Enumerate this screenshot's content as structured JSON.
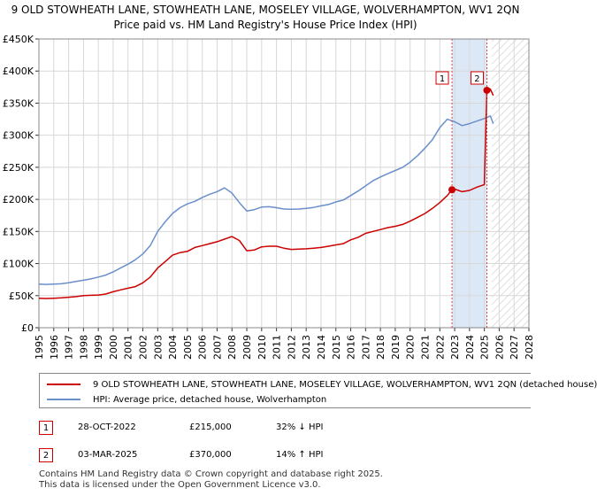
{
  "title": {
    "line1": "9 OLD STOWHEATH LANE, STOWHEATH LANE, MOSELEY VILLAGE, WOLVERHAMPTON, WV1 2QN",
    "line2": "Price paid vs. HM Land Registry's House Price Index (HPI)"
  },
  "colors": {
    "price_line": "#cc0000",
    "hpi_line": "#6a8fcb",
    "highlight": "#dde8f7",
    "sale_marker_line": "#dd4444"
  },
  "legend": {
    "price_label": "9 OLD STOWHEATH LANE, STOWHEATH LANE, MOSELEY VILLAGE, WOLVERHAMPTON, WV1 2QN (detached house)",
    "hpi_label": "HPI: Average price, detached house, Wolverhampton"
  },
  "transactions": [
    {
      "marker": "1",
      "date": "28-OCT-2022",
      "price": "£215,000",
      "hpi_change": "32% ↓ HPI"
    },
    {
      "marker": "2",
      "date": "03-MAR-2025",
      "price": "£370,000",
      "hpi_change": "14% ↑ HPI"
    }
  ],
  "footer": {
    "line1": "Contains HM Land Registry data © Crown copyright and database right 2025.",
    "line2": "This data is licensed under the Open Government Licence v3.0."
  },
  "chart_data": {
    "type": "line",
    "title": "9 OLD STOWHEATH LANE, STOWHEATH LANE, MOSELEY VILLAGE, WOLVERHAMPTON, WV1 2QN",
    "subtitle": "Price paid vs. HM Land Registry's House Price Index (HPI)",
    "xlabel": "",
    "ylabel": "",
    "xlim": [
      1995,
      2028
    ],
    "ylim": [
      0,
      450000
    ],
    "x_ticks": [
      1995,
      1996,
      1997,
      1998,
      1999,
      2000,
      2001,
      2002,
      2003,
      2004,
      2005,
      2006,
      2007,
      2008,
      2009,
      2010,
      2011,
      2012,
      2013,
      2014,
      2015,
      2016,
      2017,
      2018,
      2019,
      2020,
      2021,
      2022,
      2023,
      2024,
      2025,
      2026,
      2027,
      2028
    ],
    "y_ticks": [
      0,
      50000,
      100000,
      150000,
      200000,
      250000,
      300000,
      350000,
      400000,
      450000
    ],
    "y_tick_labels": [
      "£0",
      "£50K",
      "£100K",
      "£150K",
      "£200K",
      "£250K",
      "£300K",
      "£350K",
      "£400K",
      "£450K"
    ],
    "grid": true,
    "highlight_range": [
      2022.82,
      2025.17
    ],
    "hatched_from": 2025.5,
    "sale_markers": [
      {
        "label": "1",
        "x": 2022.82,
        "price": 215000
      },
      {
        "label": "2",
        "x": 2025.17,
        "price": 370000
      }
    ],
    "series": [
      {
        "name": "9 OLD STOWHEATH LANE, STOWHEATH LANE, MOSELEY VILLAGE, WOLVERHAMPTON, WV1 2QN (detached house)",
        "color": "#cc0000",
        "x": [
          1995,
          1995.5,
          1996,
          1996.5,
          1997,
          1997.5,
          1998,
          1998.5,
          1999,
          1999.5,
          2000,
          2000.5,
          2001,
          2001.5,
          2002,
          2002.5,
          2003,
          2003.5,
          2004,
          2004.5,
          2005,
          2005.5,
          2006,
          2006.5,
          2007,
          2007.5,
          2008,
          2008.5,
          2009,
          2009.5,
          2010,
          2010.5,
          2011,
          2011.5,
          2012,
          2012.5,
          2013,
          2013.5,
          2014,
          2014.5,
          2015,
          2015.5,
          2016,
          2016.5,
          2017,
          2017.5,
          2018,
          2018.5,
          2019,
          2019.5,
          2020,
          2020.5,
          2021,
          2021.5,
          2022,
          2022.5,
          2022.82,
          2023,
          2023.5,
          2024,
          2024.5,
          2025,
          2025.17,
          2025.4,
          2025.6
        ],
        "y": [
          46000,
          45500,
          46000,
          46500,
          47500,
          48500,
          50000,
          50500,
          51000,
          52500,
          56000,
          59000,
          61500,
          64000,
          70000,
          79000,
          93000,
          103000,
          113000,
          117000,
          119000,
          125000,
          128000,
          131000,
          134000,
          138000,
          142000,
          136000,
          120000,
          121000,
          126000,
          127000,
          127000,
          124000,
          122000,
          122500,
          123000,
          124000,
          125000,
          127000,
          129000,
          131000,
          137000,
          141000,
          147000,
          150000,
          153000,
          156000,
          158000,
          161000,
          166000,
          172000,
          178000,
          186000,
          195000,
          206000,
          215000,
          216000,
          212000,
          214000,
          219000,
          223000,
          370000,
          372000,
          362000
        ]
      },
      {
        "name": "HPI: Average price, detached house, Wolverhampton",
        "color": "#6a8fcb",
        "x": [
          1995,
          1995.5,
          1996,
          1996.5,
          1997,
          1997.5,
          1998,
          1998.5,
          1999,
          1999.5,
          2000,
          2000.5,
          2001,
          2001.5,
          2002,
          2002.5,
          2003,
          2003.5,
          2004,
          2004.5,
          2005,
          2005.5,
          2006,
          2006.5,
          2007,
          2007.5,
          2008,
          2008.5,
          2009,
          2009.5,
          2010,
          2010.5,
          2011,
          2011.5,
          2012,
          2012.5,
          2013,
          2013.5,
          2014,
          2014.5,
          2015,
          2015.5,
          2016,
          2016.5,
          2017,
          2017.5,
          2018,
          2018.5,
          2019,
          2019.5,
          2020,
          2020.5,
          2021,
          2021.5,
          2022,
          2022.5,
          2023,
          2023.5,
          2024,
          2024.5,
          2025,
          2025.4,
          2025.6
        ],
        "y": [
          68000,
          67500,
          68000,
          68500,
          70000,
          72000,
          74000,
          76000,
          79000,
          82000,
          87000,
          93000,
          99000,
          106000,
          115000,
          128000,
          150000,
          165000,
          178000,
          187000,
          193000,
          197000,
          203000,
          208000,
          212000,
          218000,
          210000,
          195000,
          182000,
          184000,
          188000,
          188500,
          187000,
          185000,
          184500,
          185000,
          186000,
          187500,
          190000,
          192000,
          196000,
          199000,
          206000,
          213000,
          221000,
          229000,
          235000,
          240000,
          245000,
          250000,
          258000,
          268000,
          280000,
          293000,
          312000,
          325000,
          321000,
          315000,
          318000,
          322000,
          326000,
          330000,
          318000
        ]
      }
    ]
  }
}
